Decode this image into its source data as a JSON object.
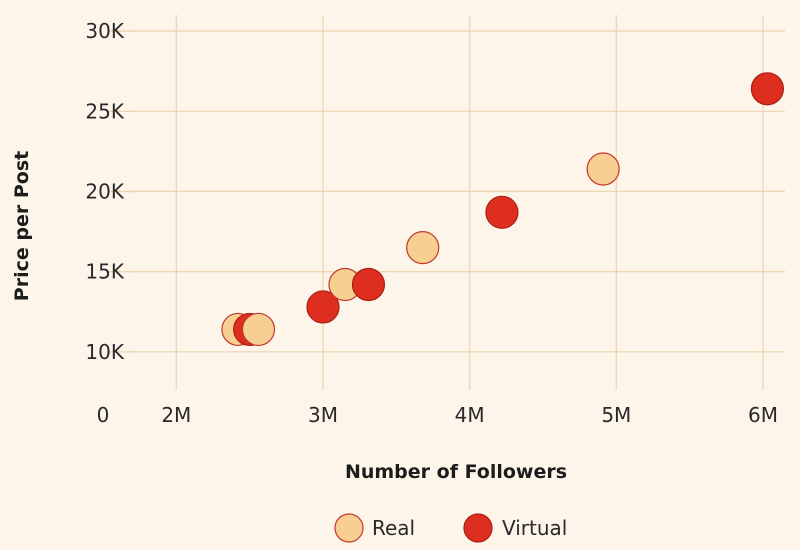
{
  "colors": {
    "background": "#fdf5ea",
    "grid": "#ecd6b3",
    "real_fill": "#f8cf93",
    "real_stroke": "#c0392b",
    "virtual_fill": "#dd2e1f",
    "virtual_stroke": "#a81f14"
  },
  "chart_data": {
    "type": "scatter",
    "title": "",
    "xlabel": "Number of Followers",
    "ylabel": "Price per Post",
    "xlim": [
      1500000,
      6150000
    ],
    "ylim": [
      7000,
      31000
    ],
    "grid": true,
    "legend_position": "bottom-center",
    "x_ticks": [
      {
        "value": 2000000,
        "label": "2M"
      },
      {
        "value": 3000000,
        "label": "3M"
      },
      {
        "value": 4000000,
        "label": "4M"
      },
      {
        "value": 5000000,
        "label": "5M"
      },
      {
        "value": 6000000,
        "label": "6M"
      }
    ],
    "x_origin_label": "0",
    "y_ticks": [
      {
        "value": 10000,
        "label": "10K"
      },
      {
        "value": 15000,
        "label": "15K"
      },
      {
        "value": 20000,
        "label": "20K"
      },
      {
        "value": 25000,
        "label": "25K"
      },
      {
        "value": 30000,
        "label": "30K"
      }
    ],
    "series": [
      {
        "name": "Real",
        "color": "#f8cf93",
        "points": [
          {
            "x": 2420000,
            "y": 11400
          },
          {
            "x": 2560000,
            "y": 11400
          },
          {
            "x": 3150000,
            "y": 14200
          },
          {
            "x": 3680000,
            "y": 16500
          },
          {
            "x": 4910000,
            "y": 21400
          }
        ]
      },
      {
        "name": "Virtual",
        "color": "#dd2e1f",
        "points": [
          {
            "x": 2500000,
            "y": 11400
          },
          {
            "x": 3000000,
            "y": 12800
          },
          {
            "x": 3310000,
            "y": 14200
          },
          {
            "x": 4220000,
            "y": 18700
          },
          {
            "x": 6030000,
            "y": 26400
          }
        ]
      }
    ]
  }
}
